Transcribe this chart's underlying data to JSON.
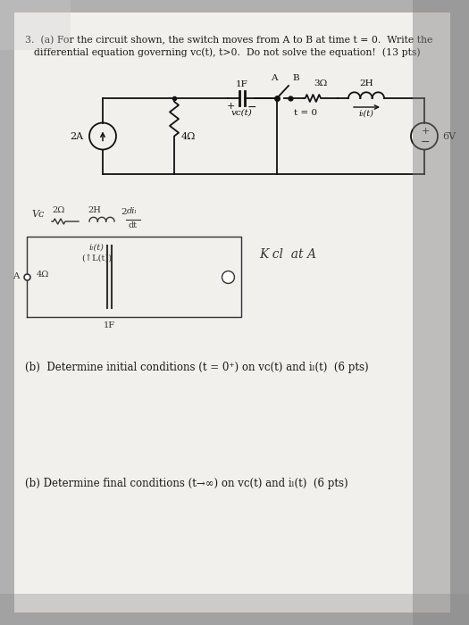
{
  "bg_color": "#b0b0b0",
  "page_color": "#f2f0ed",
  "text_color": "#1a1a1a",
  "circuit_color": "#111111",
  "title_line1": "3.  (a) For the circuit shown, the switch moves from A to B at time t = 0.  Write the",
  "title_line2": "    differential equation governing vC(t), t>0.  Do not solve the equation!  (13 pts)",
  "part_b1": "(b)  Determine initial conditions (t = 0⁺) on vⲟ(t) and iₗ(t)  (6 pts)",
  "part_b2": "(b) Determine final conditions (t→∞) on vⲟ(t) and iₗ(t)  (6 pts)",
  "kcl_label": "K cl  at A",
  "fig_width": 5.25,
  "fig_height": 7.0
}
